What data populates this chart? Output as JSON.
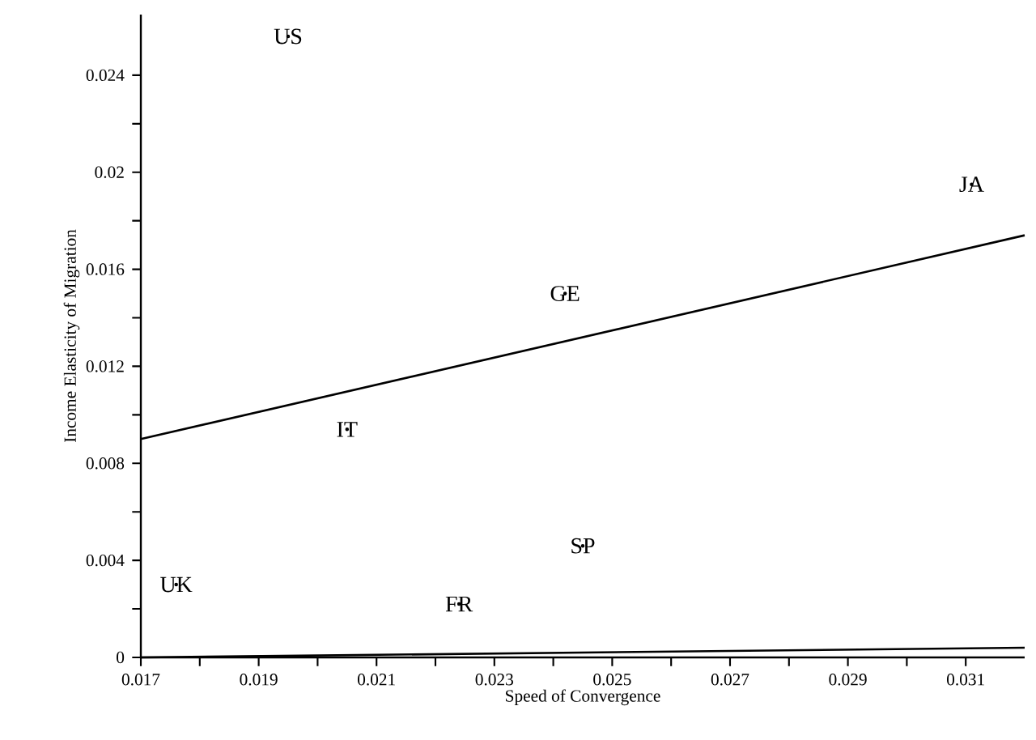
{
  "chart_data": {
    "type": "line",
    "xlabel": "Speed of Convergence",
    "ylabel": "Income Elasticity of Migration",
    "xlim": [
      0.017,
      0.032
    ],
    "ylim": [
      0,
      0.0265
    ],
    "xticks": [
      0.017,
      {
        "value": 0.018,
        "label": null
      },
      0.019,
      {
        "value": 0.02,
        "label": null
      },
      0.021,
      {
        "value": 0.022,
        "label": null
      },
      0.023,
      {
        "value": 0.024,
        "label": null
      },
      0.025,
      {
        "value": 0.026,
        "label": null
      },
      0.027,
      {
        "value": 0.028,
        "label": null
      },
      0.029,
      {
        "value": 0.03,
        "label": null
      },
      0.031
    ],
    "yticks": [
      0,
      {
        "value": 0.002,
        "label": null
      },
      0.004,
      {
        "value": 0.006,
        "label": null
      },
      0.008,
      {
        "value": 0.01,
        "label": null
      },
      0.012,
      {
        "value": 0.014,
        "label": null
      },
      0.016,
      {
        "value": 0.018,
        "label": null
      },
      0.02,
      {
        "value": 0.022,
        "label": null
      },
      0.024
    ],
    "series": [
      {
        "color": "#000000",
        "x": [
          0.017,
          0.032
        ],
        "values": [
          0.009,
          0.0174
        ]
      },
      {
        "color": "#000000",
        "x": [
          0.017,
          0.032
        ],
        "values": [
          0,
          0.0004
        ]
      },
      {
        "type": "scatter",
        "name": "US",
        "color": "#000000",
        "x": [
          0.0195
        ],
        "values": [
          0.0256
        ]
      },
      {
        "type": "scatter",
        "name": "JA",
        "color": "#000000",
        "x": [
          0.0311
        ],
        "values": [
          0.0195
        ]
      },
      {
        "type": "scatter",
        "name": "GE",
        "color": "#000000",
        "x": [
          0.0242
        ],
        "values": [
          0.015
        ]
      },
      {
        "type": "scatter",
        "name": "IT",
        "color": "#000000",
        "x": [
          0.0205
        ],
        "values": [
          0.0094
        ]
      },
      {
        "type": "scatter",
        "name": "SP",
        "color": "#000000",
        "x": [
          0.0245
        ],
        "values": [
          0.0046
        ]
      },
      {
        "type": "scatter",
        "name": "UK",
        "color": "#000000",
        "x": [
          0.0176
        ],
        "values": [
          0.003
        ]
      },
      {
        "type": "scatter",
        "name": "FR",
        "color": "#000000",
        "x": [
          0.0224
        ],
        "values": [
          0.0022
        ]
      }
    ]
  }
}
